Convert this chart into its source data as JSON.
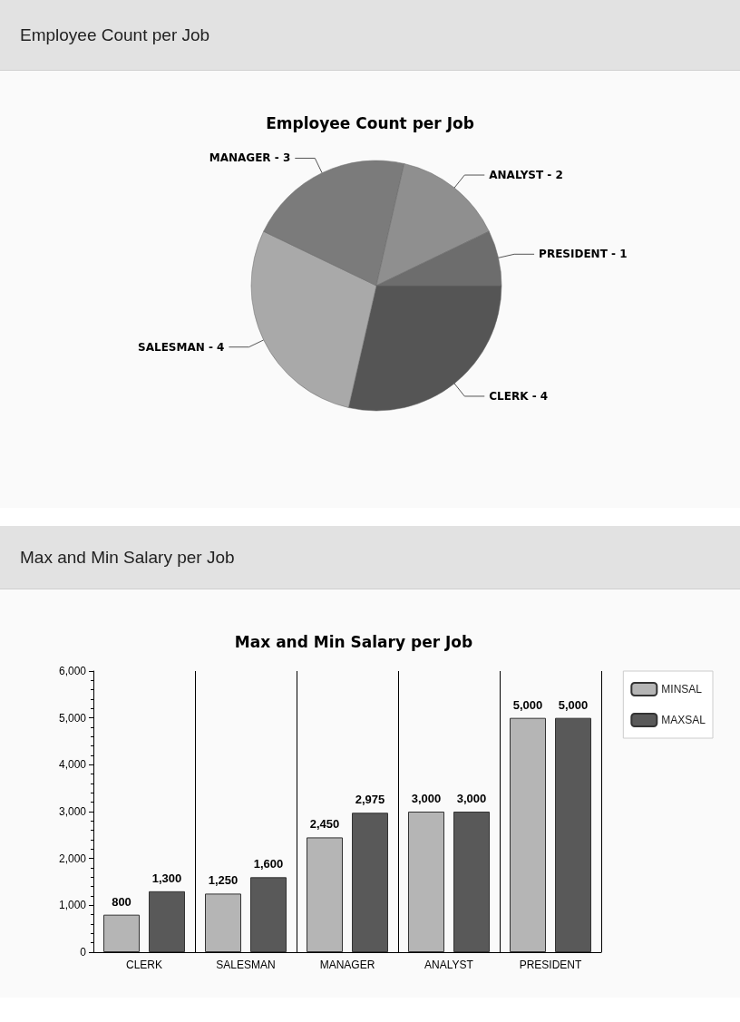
{
  "chart_data": [
    {
      "type": "pie",
      "annotations": [
        "Employee Count per Job"
      ],
      "title": "Employee Count per Job",
      "categories": [
        "CLERK - 4",
        "SALESMAN - 4",
        "MANAGER - 3",
        "ANALYST - 2",
        "PRESIDENT - 1"
      ],
      "values": [
        28.57,
        28.57,
        21.43,
        14.29,
        7.14
      ],
      "colors": [
        "#555555",
        "#a9a9a9",
        "#7b7b7b",
        "#8f8f8f",
        "#6d6d6d"
      ],
      "legend": false
    },
    {
      "type": "bar",
      "annotations": [
        "Max and Min Salary per Job"
      ],
      "title": "Max and Min Salary per Job",
      "categories": [
        "CLERK",
        "SALESMAN",
        "MANAGER",
        "ANALYST",
        "PRESIDENT"
      ],
      "series": [
        {
          "name": "MINSAL",
          "color": "#b5b5b5",
          "values": [
            800,
            1250,
            2450,
            3000,
            5000
          ],
          "value_labels": [
            "800",
            "1,250",
            "2,450",
            "3,000",
            "5,000"
          ]
        },
        {
          "name": "MAXSAL",
          "color": "#595959",
          "values": [
            1300,
            1600,
            2975,
            3000,
            5000
          ],
          "value_labels": [
            "1,300",
            "1,600",
            "2,975",
            "3,000",
            "5,000"
          ]
        }
      ],
      "ylim": [
        0,
        6000
      ],
      "yticks": [
        {
          "value": 0,
          "label": "0"
        },
        {
          "value": 1000,
          "label": "1,000"
        },
        {
          "value": 2000,
          "label": "2,000"
        },
        {
          "value": 3000,
          "label": "3,000"
        },
        {
          "value": 4000,
          "label": "4,000"
        },
        {
          "value": 5000,
          "label": "5,000"
        },
        {
          "value": 6000,
          "label": "6,000"
        }
      ],
      "grid": "x",
      "legend": "top right"
    }
  ]
}
